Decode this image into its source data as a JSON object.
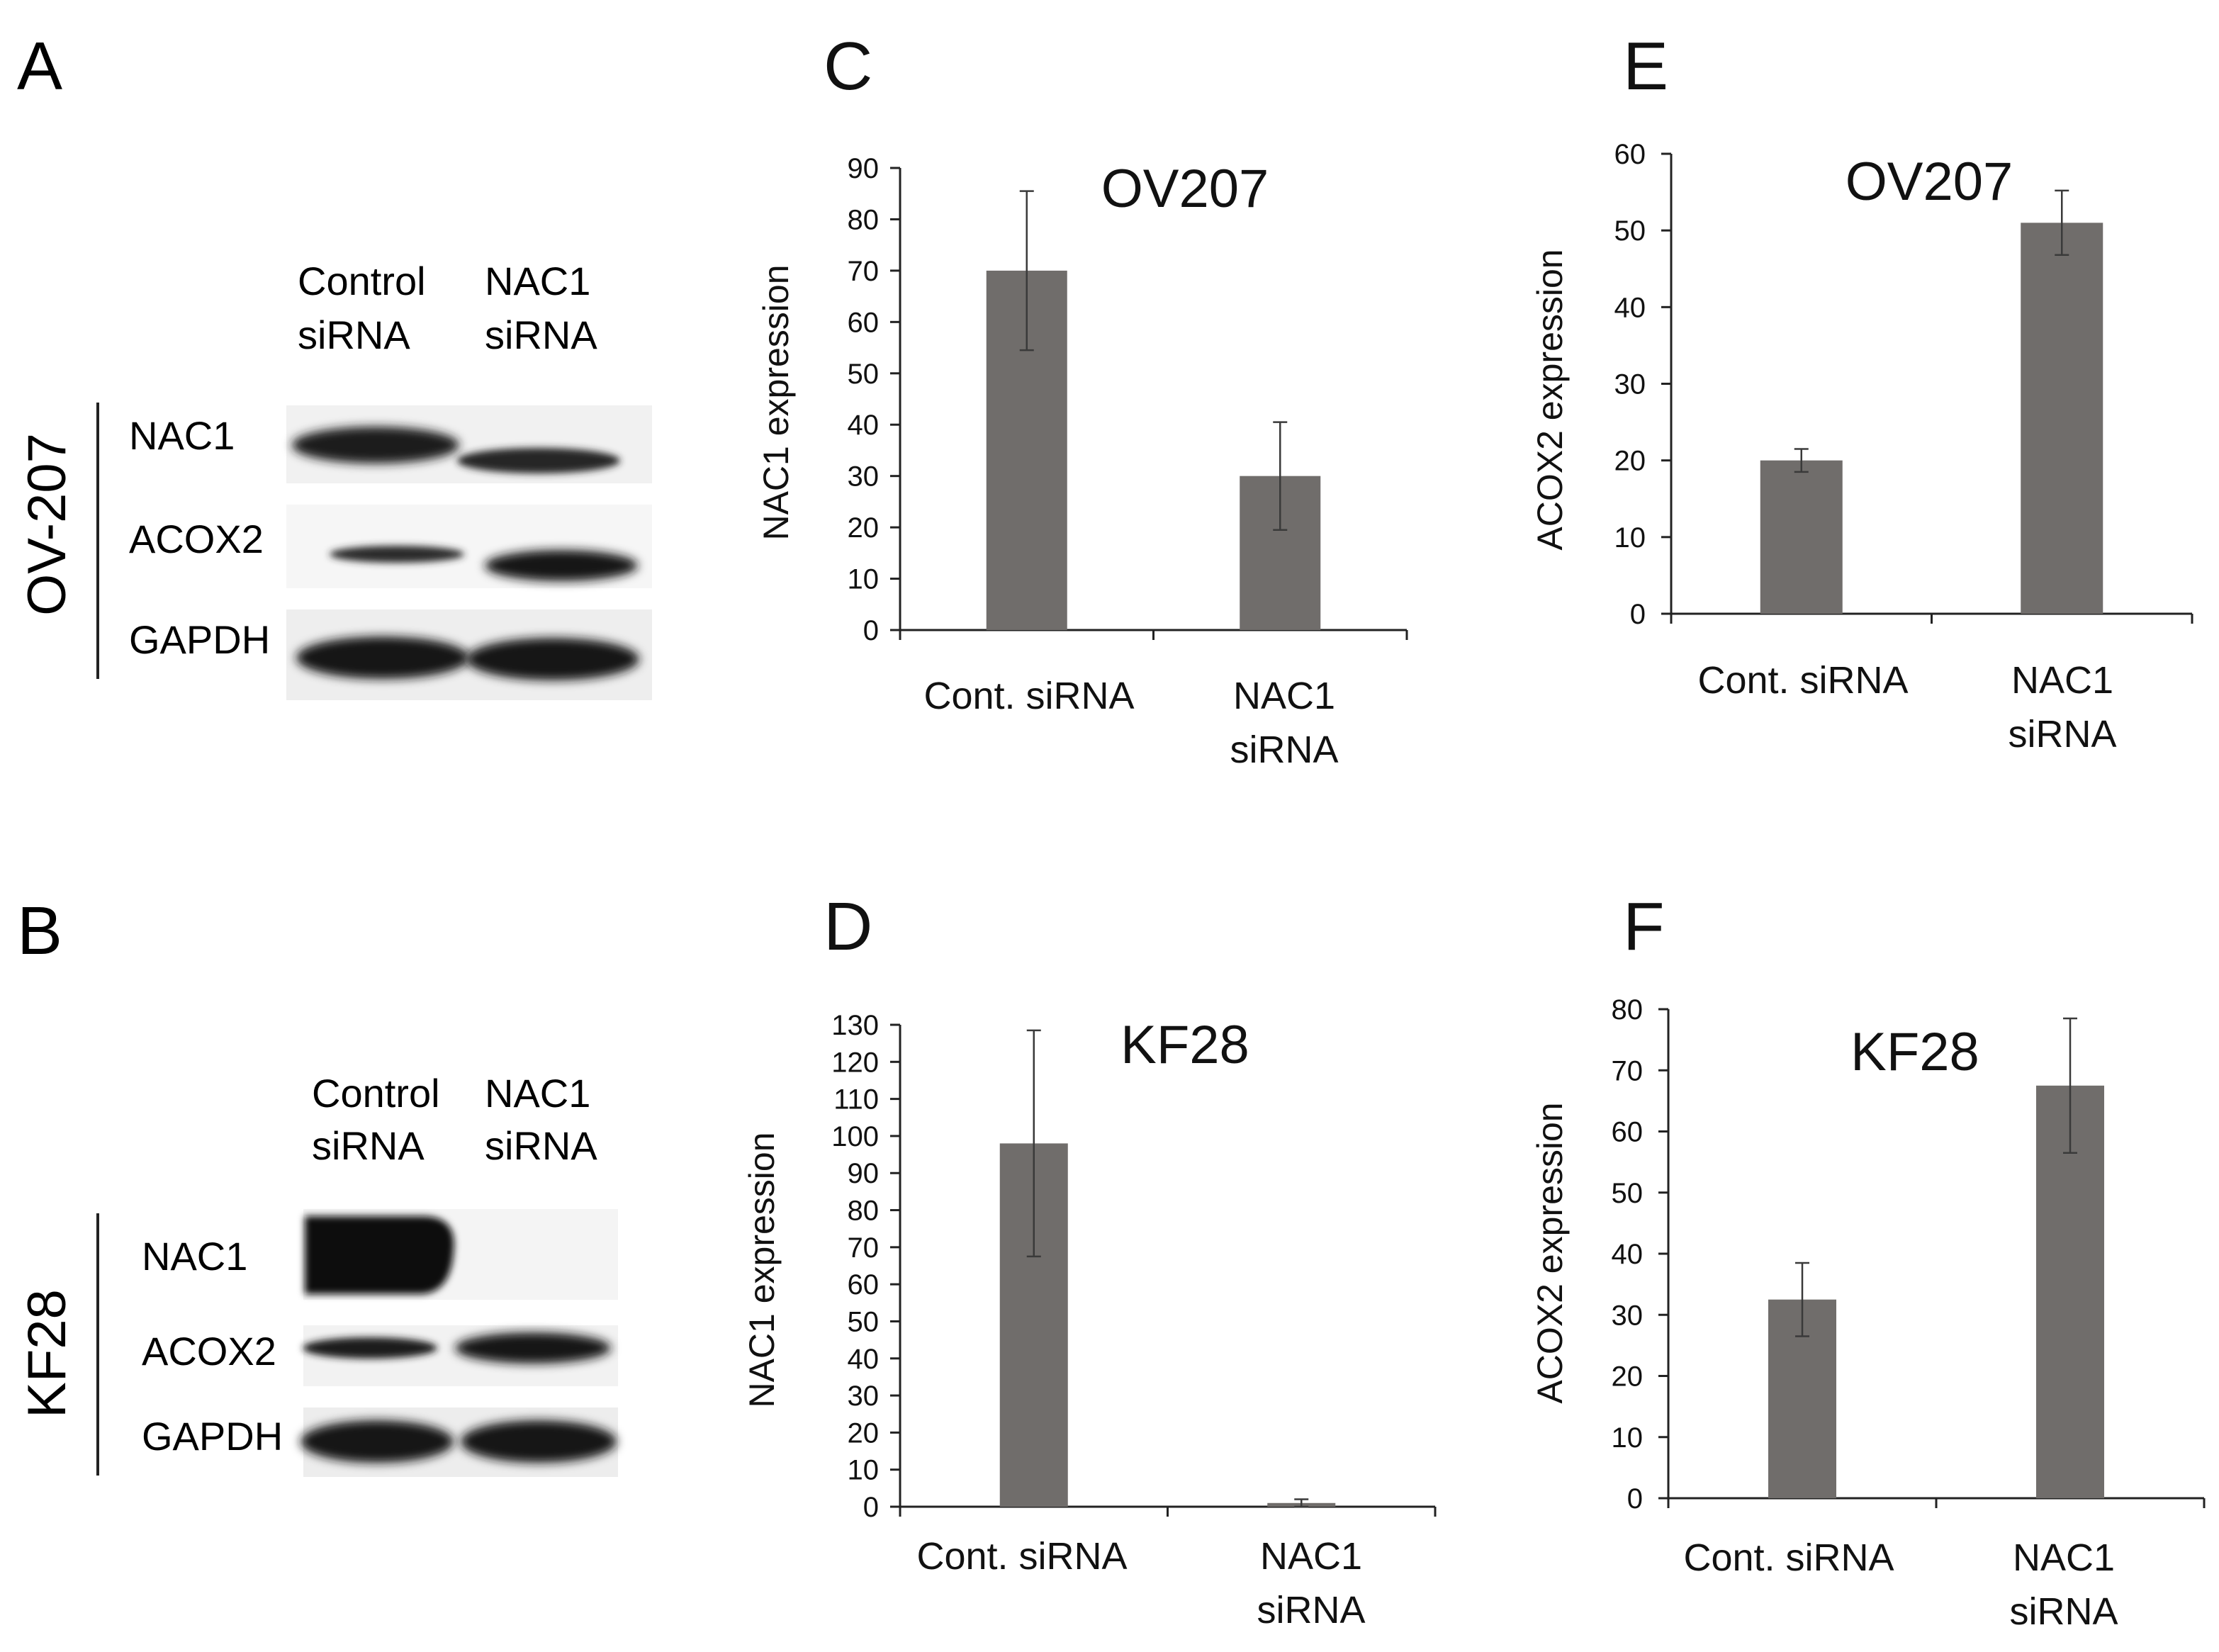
{
  "blots": [
    {
      "letter": "A",
      "cell_line": "OV-207",
      "lanes": [
        [
          "Control",
          "siRNA"
        ],
        [
          "NAC1",
          "siRNA"
        ]
      ],
      "proteins": [
        "NAC1",
        "ACOX2",
        "GAPDH"
      ]
    },
    {
      "letter": "B",
      "cell_line": "KF28",
      "lanes": [
        [
          "Control",
          "siRNA"
        ],
        [
          "NAC1",
          "siRNA"
        ]
      ],
      "proteins": [
        "NAC1",
        "ACOX2",
        "GAPDH"
      ]
    }
  ],
  "colors": {
    "bar": "#706d6b",
    "axis": "#222222",
    "text": "#111111",
    "band": "#1a1a1a"
  },
  "chart_data": [
    {
      "letter": "C",
      "type": "bar",
      "title": "OV207",
      "ylabel": "NAC1 expression",
      "categories": [
        [
          "Cont. siRNA"
        ],
        [
          "NAC1",
          "siRNA"
        ]
      ],
      "values": [
        70,
        30
      ],
      "errors": [
        15.5,
        10.5
      ],
      "ylim": [
        0,
        90
      ],
      "yticks": [
        0,
        10,
        20,
        30,
        40,
        50,
        60,
        70,
        80,
        90
      ]
    },
    {
      "letter": "D",
      "type": "bar",
      "title": "KF28",
      "ylabel": "NAC1 expression",
      "categories": [
        [
          "Cont. siRNA"
        ],
        [
          "NAC1",
          "siRNA"
        ]
      ],
      "values": [
        98,
        1
      ],
      "errors": [
        30.5,
        1
      ],
      "ylim": [
        0,
        130
      ],
      "yticks": [
        0,
        10,
        20,
        30,
        40,
        50,
        60,
        70,
        80,
        90,
        100,
        110,
        120,
        130
      ]
    },
    {
      "letter": "E",
      "type": "bar",
      "title": "OV207",
      "ylabel": "ACOX2 expression",
      "categories": [
        [
          "Cont. siRNA"
        ],
        [
          "NAC1",
          "siRNA"
        ]
      ],
      "values": [
        20,
        51
      ],
      "errors": [
        1.5,
        4.2
      ],
      "ylim": [
        0,
        60
      ],
      "yticks": [
        0,
        10,
        20,
        30,
        40,
        50,
        60
      ]
    },
    {
      "letter": "F",
      "type": "bar",
      "title": "KF28",
      "ylabel": "ACOX2 expression",
      "categories": [
        [
          "Cont. siRNA"
        ],
        [
          "NAC1",
          "siRNA"
        ]
      ],
      "values": [
        32.5,
        67.5
      ],
      "errors": [
        6,
        11
      ],
      "ylim": [
        0,
        80
      ],
      "yticks": [
        0,
        10,
        20,
        30,
        40,
        50,
        60,
        70,
        80
      ]
    }
  ]
}
